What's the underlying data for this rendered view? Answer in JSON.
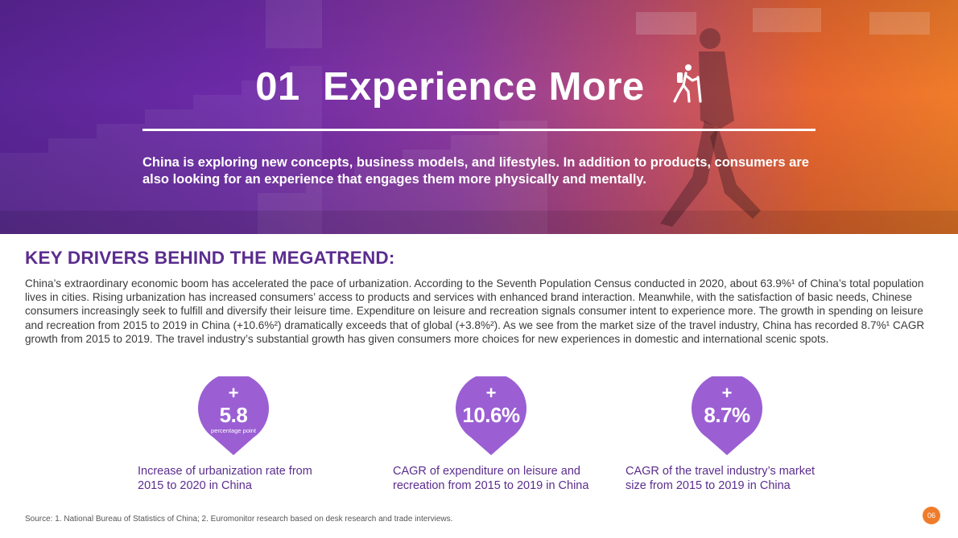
{
  "hero": {
    "number": "01",
    "title": "Experience More",
    "subtitle": "China is exploring new concepts, business models, and lifestyles. In addition to products, consumers are also looking for an experience that engages them more physically and mentally."
  },
  "section": {
    "heading": "KEY DRIVERS BEHIND THE MEGATREND:",
    "body": "China’s extraordinary economic boom has accelerated the pace of urbanization. According to the Seventh Population Census conducted in 2020, about 63.9%¹ of China’s total population lives in cities. Rising urbanization has increased consumers’ access to products and services with enhanced brand interaction. Meanwhile, with the satisfaction of basic needs, Chinese consumers increasingly seek to fulfill and diversify their leisure time. Expenditure on leisure and recreation signals consumer intent to experience more. The growth in spending on leisure and recreation from 2015 to 2019 in China (+10.6%²) dramatically exceeds that of global (+3.8%²). As we see from the market size of the travel industry, China has recorded 8.7%¹ CAGR growth from 2015 to 2019. The travel industry’s substantial growth has given consumers more choices for new experiences in domestic and international scenic spots."
  },
  "stats": [
    {
      "plus": "+",
      "value": "5.8",
      "unit": "percentage point",
      "desc_line1": "Increase of urbanization rate from",
      "desc_line2": "2015 to 2020 in China"
    },
    {
      "plus": "+",
      "value": "10.6%",
      "unit": "",
      "desc_line1": "CAGR of expenditure on leisure and",
      "desc_line2": "recreation from 2015 to 2019 in China"
    },
    {
      "plus": "+",
      "value": "8.7%",
      "unit": "",
      "desc_line1": "CAGR of the travel industry’s market",
      "desc_line2": "size from 2015 to 2019 in China"
    }
  ],
  "footer": {
    "source": "Source: 1. National Bureau of Statistics of China; 2. Euromonitor research based on desk research and trade interviews.",
    "page": "06"
  },
  "colors": {
    "accent": "#5b2d8e",
    "pin": "#9b5fd3",
    "orange": "#f07c2a"
  },
  "icons": {
    "hiker": "hiker-icon"
  }
}
